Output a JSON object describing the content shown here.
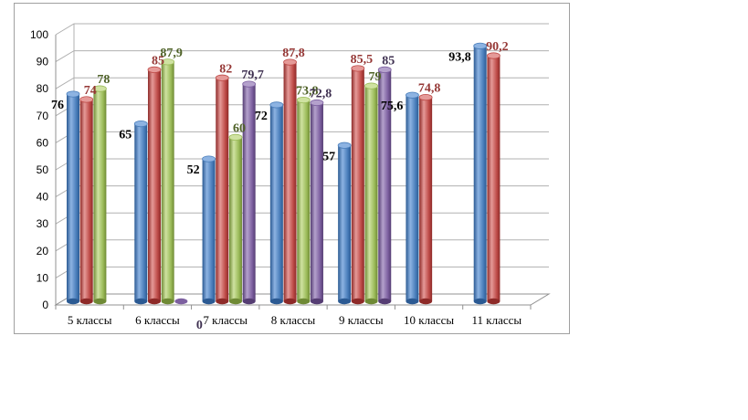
{
  "colors": {
    "blue": {
      "base": "#4a7ebb",
      "light": "#8db3e2",
      "dark": "#2b5a93",
      "label": "#000000"
    },
    "red": {
      "base": "#be4b48",
      "light": "#e59a98",
      "dark": "#8e2a28",
      "label": "#953735"
    },
    "green": {
      "base": "#9bbb59",
      "light": "#cfe2a1",
      "dark": "#6f8a35",
      "label": "#4f6228"
    },
    "purple": {
      "base": "#7d60a0",
      "light": "#b4a1cc",
      "dark": "#553d73",
      "label": "#3f3151"
    }
  },
  "chart_data": {
    "type": "bar",
    "title": "",
    "xlabel": "",
    "ylabel": "",
    "ylim": [
      0,
      100
    ],
    "yticks": [
      0,
      10,
      20,
      30,
      40,
      50,
      60,
      70,
      80,
      90,
      100
    ],
    "grid": true,
    "categories": [
      "5 классы",
      "6 классы",
      "7 классы",
      "8 классы",
      "9 классы",
      "10 классы",
      "11 классы"
    ],
    "series": [
      {
        "color": "blue",
        "values": [
          76,
          65,
          52,
          72,
          57,
          75.6,
          93.8
        ],
        "labels": [
          "76",
          "65",
          "52",
          "72",
          "57",
          "75,6",
          "93,8"
        ]
      },
      {
        "color": "red",
        "values": [
          74,
          85,
          82,
          87.8,
          85.5,
          74.8,
          90.2
        ],
        "labels": [
          "74",
          "85",
          "82",
          "87,8",
          "85,5",
          "74,8",
          "90,2"
        ]
      },
      {
        "color": "green",
        "values": [
          78,
          87.9,
          60,
          73.8,
          79,
          null,
          null
        ],
        "labels": [
          "78",
          "87,9",
          "60",
          "73,8",
          "79",
          "",
          ""
        ]
      },
      {
        "color": "purple",
        "values": [
          null,
          0,
          79.7,
          72.8,
          85,
          null,
          null
        ],
        "labels": [
          "",
          "0",
          "79,7",
          "72,8",
          "85",
          "",
          ""
        ]
      }
    ]
  }
}
